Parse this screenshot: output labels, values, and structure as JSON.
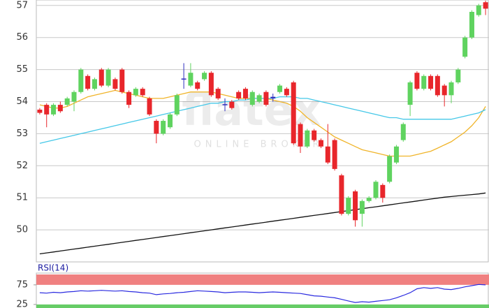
{
  "chart_data": [
    {
      "type": "candlestick",
      "watermark": "flatex",
      "watermark_sub": "ONLINE BROKER",
      "ylim": [
        49,
        57.17
      ],
      "yticks": [
        50,
        51,
        52,
        53,
        54,
        55,
        56,
        57
      ],
      "grid": true,
      "up_color": "#5fd35f",
      "down_color": "#e8262b",
      "flat_color": "#3030c0",
      "open": [
        53.75,
        53.9,
        53.6,
        53.9,
        53.9,
        54.0,
        54.3,
        54.8,
        54.4,
        55.0,
        54.5,
        54.7,
        55.0,
        54.3,
        54.2,
        54.4,
        54.1,
        53.4,
        53.0,
        53.2,
        53.6,
        54.7,
        54.5,
        54.6,
        54.7,
        54.9,
        54.4,
        53.9,
        54.0,
        54.3,
        54.4,
        53.9,
        54.0,
        54.3,
        54.1,
        54.3,
        54.4,
        54.6,
        53.3,
        52.6,
        53.1,
        52.8,
        52.6,
        52.8,
        51.7,
        50.5,
        51.2,
        50.5,
        50.9,
        51.0,
        51.4,
        51.5,
        52.1,
        52.8,
        53.9,
        54.9,
        54.4,
        54.8,
        54.8,
        54.5,
        54.2,
        54.6,
        55.4,
        56.0,
        56.7,
        57.1
      ],
      "high": [
        53.8,
        53.95,
        53.95,
        54.0,
        54.15,
        54.35,
        55.05,
        54.85,
        54.75,
        55.05,
        55.05,
        54.75,
        55.05,
        54.35,
        54.45,
        54.45,
        54.15,
        53.45,
        53.45,
        53.65,
        54.25,
        55.2,
        55.2,
        54.65,
        54.95,
        54.95,
        54.45,
        54.1,
        54.05,
        54.35,
        54.45,
        54.35,
        54.25,
        54.35,
        54.25,
        54.55,
        54.45,
        54.65,
        53.35,
        53.15,
        53.15,
        52.85,
        53.3,
        52.85,
        51.75,
        51.05,
        51.25,
        50.95,
        51.05,
        51.55,
        51.45,
        52.35,
        52.65,
        53.35,
        54.65,
        54.95,
        54.85,
        54.85,
        54.85,
        54.55,
        54.65,
        55.05,
        56.05,
        56.85,
        57.05,
        57.15
      ],
      "low": [
        53.6,
        53.2,
        53.55,
        53.65,
        53.85,
        53.7,
        54.25,
        54.35,
        54.35,
        54.45,
        54.45,
        54.35,
        54.25,
        53.8,
        54.15,
        54.15,
        53.55,
        52.7,
        52.95,
        53.15,
        53.55,
        54.4,
        54.45,
        54.35,
        54.65,
        54.15,
        54.05,
        53.7,
        53.75,
        54.05,
        54.05,
        53.85,
        53.95,
        53.85,
        54.0,
        54.25,
        54.15,
        52.65,
        52.4,
        52.55,
        52.75,
        52.55,
        52.05,
        51.85,
        50.45,
        50.45,
        50.1,
        50.1,
        50.85,
        50.95,
        50.85,
        51.45,
        52.05,
        52.75,
        53.55,
        54.35,
        54.35,
        54.35,
        54.15,
        53.85,
        53.95,
        54.55,
        55.35,
        55.95,
        56.65,
        56.7
      ],
      "close": [
        53.65,
        53.6,
        53.9,
        53.7,
        54.1,
        54.3,
        55.0,
        54.4,
        54.7,
        54.5,
        55.0,
        54.4,
        54.3,
        53.9,
        54.4,
        54.2,
        53.6,
        53.0,
        53.4,
        53.6,
        54.2,
        54.72,
        54.9,
        54.4,
        54.9,
        54.2,
        54.1,
        53.92,
        53.8,
        54.1,
        54.1,
        54.3,
        54.2,
        53.9,
        54.15,
        54.5,
        54.2,
        52.7,
        52.6,
        53.1,
        52.8,
        52.6,
        52.1,
        51.9,
        50.5,
        51.0,
        50.3,
        50.9,
        51.0,
        51.5,
        51.0,
        52.3,
        52.6,
        53.3,
        54.6,
        54.4,
        54.8,
        54.4,
        54.2,
        54.2,
        54.6,
        55.0,
        56.0,
        56.8,
        57.0,
        56.9
      ],
      "series": [
        {
          "color": "#f0b429",
          "values": [
            53.9,
            53.85,
            53.8,
            53.8,
            53.85,
            53.95,
            54.05,
            54.15,
            54.2,
            54.25,
            54.3,
            54.35,
            54.3,
            54.25,
            54.2,
            54.15,
            54.1,
            54.1,
            54.1,
            54.15,
            54.2,
            54.25,
            54.3,
            54.3,
            54.3,
            54.3,
            54.25,
            54.2,
            54.15,
            54.1,
            54.1,
            54.1,
            54.1,
            54.1,
            54.05,
            54.0,
            53.95,
            53.85,
            53.7,
            53.5,
            53.35,
            53.2,
            53.05,
            52.9,
            52.8,
            52.7,
            52.6,
            52.5,
            52.45,
            52.4,
            52.35,
            52.3,
            52.3,
            52.3,
            52.3,
            52.35,
            52.4,
            52.45,
            52.55,
            52.65,
            52.75,
            52.9,
            53.05,
            53.25,
            53.5,
            53.85
          ]
        },
        {
          "color": "#45c8e8",
          "values": [
            52.7,
            52.75,
            52.8,
            52.85,
            52.9,
            52.95,
            53.0,
            53.05,
            53.1,
            53.15,
            53.2,
            53.25,
            53.3,
            53.35,
            53.4,
            53.45,
            53.5,
            53.55,
            53.6,
            53.65,
            53.7,
            53.75,
            53.8,
            53.85,
            53.9,
            53.95,
            53.95,
            54.0,
            54.0,
            54.05,
            54.05,
            54.1,
            54.1,
            54.1,
            54.1,
            54.15,
            54.15,
            54.15,
            54.1,
            54.1,
            54.05,
            54.0,
            53.95,
            53.9,
            53.85,
            53.8,
            53.75,
            53.7,
            53.65,
            53.6,
            53.55,
            53.5,
            53.5,
            53.45,
            53.45,
            53.45,
            53.45,
            53.45,
            53.45,
            53.45,
            53.45,
            53.5,
            53.55,
            53.6,
            53.65,
            53.75
          ]
        },
        {
          "color": "#111111",
          "values": [
            49.25,
            49.28,
            49.31,
            49.34,
            49.37,
            49.4,
            49.43,
            49.46,
            49.49,
            49.52,
            49.55,
            49.58,
            49.61,
            49.64,
            49.67,
            49.7,
            49.73,
            49.76,
            49.79,
            49.82,
            49.85,
            49.88,
            49.91,
            49.94,
            49.97,
            50.0,
            50.03,
            50.06,
            50.09,
            50.12,
            50.15,
            50.18,
            50.21,
            50.24,
            50.27,
            50.3,
            50.33,
            50.36,
            50.39,
            50.42,
            50.45,
            50.48,
            50.51,
            50.54,
            50.57,
            50.6,
            50.63,
            50.66,
            50.69,
            50.72,
            50.75,
            50.78,
            50.81,
            50.84,
            50.87,
            50.9,
            50.93,
            50.96,
            50.99,
            51.02,
            51.04,
            51.06,
            51.08,
            51.1,
            51.12,
            51.15
          ]
        }
      ]
    },
    {
      "type": "line",
      "title": "RSI(14)",
      "ylim": [
        16,
        105
      ],
      "yticks": [
        25,
        75
      ],
      "upper_band_color": "#f08080",
      "lower_band_color": "#66cc66",
      "series": [
        {
          "color": "#2a2ae0",
          "values": [
            55,
            54,
            56,
            55,
            57,
            58,
            60,
            59,
            60,
            61,
            60,
            59,
            60,
            58,
            57,
            55,
            54,
            50,
            52,
            53,
            55,
            56,
            58,
            60,
            59,
            58,
            57,
            55,
            56,
            57,
            57,
            56,
            55,
            56,
            57,
            56,
            55,
            54,
            53,
            50,
            47,
            46,
            44,
            42,
            38,
            34,
            30,
            32,
            31,
            33,
            35,
            37,
            42,
            48,
            55,
            65,
            68,
            66,
            68,
            64,
            63,
            66,
            70,
            73,
            76,
            75
          ]
        }
      ]
    }
  ]
}
